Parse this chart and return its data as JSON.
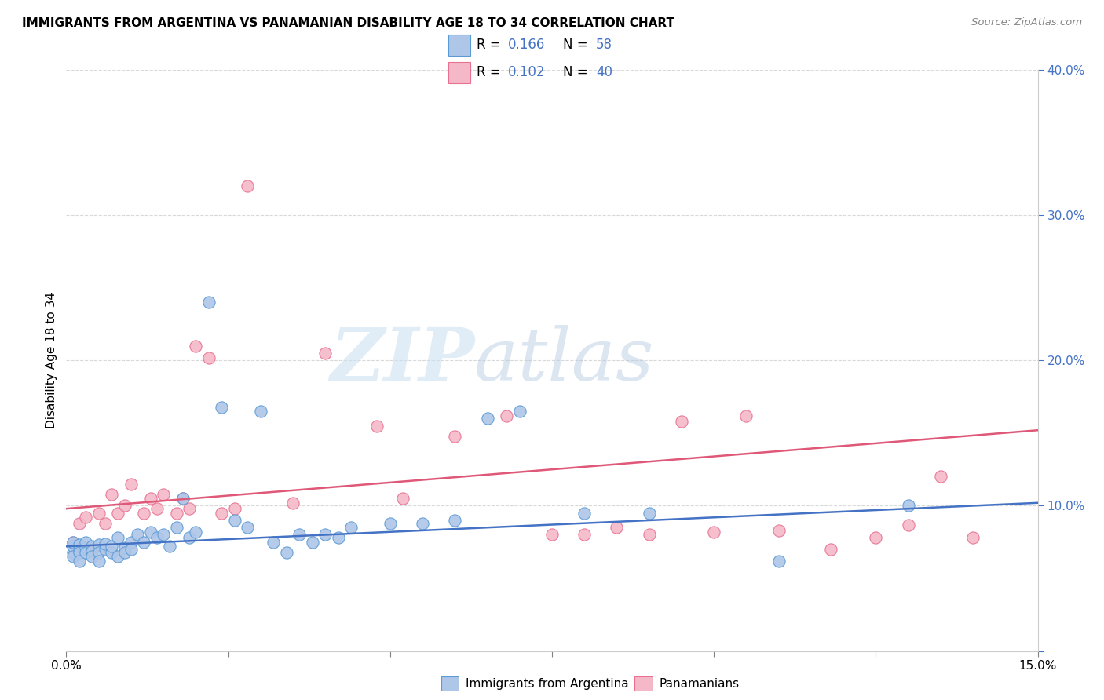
{
  "title": "IMMIGRANTS FROM ARGENTINA VS PANAMANIAN DISABILITY AGE 18 TO 34 CORRELATION CHART",
  "source": "Source: ZipAtlas.com",
  "ylabel": "Disability Age 18 to 34",
  "xlim": [
    0.0,
    0.15
  ],
  "ylim": [
    0.0,
    0.4
  ],
  "xticks": [
    0.0,
    0.025,
    0.05,
    0.075,
    0.1,
    0.125,
    0.15
  ],
  "yticks": [
    0.0,
    0.1,
    0.2,
    0.3,
    0.4
  ],
  "R_argentina": 0.166,
  "N_argentina": 58,
  "R_panama": 0.102,
  "N_panama": 40,
  "argentina_color": "#aec6e8",
  "argentina_edge_color": "#5b9bd5",
  "argentina_line_color": "#4472c4",
  "panama_color": "#f4b8c8",
  "panama_edge_color": "#e87090",
  "panama_line_color": "#e05878",
  "blue_text_color": "#4472c4",
  "background_color": "#ffffff",
  "grid_color": "#d9d9d9",
  "arg_line_start_y": 0.072,
  "arg_line_end_y": 0.102,
  "pan_line_start_y": 0.098,
  "pan_line_end_y": 0.152,
  "argentina_scatter_x": [
    0.001,
    0.001,
    0.001,
    0.001,
    0.002,
    0.002,
    0.002,
    0.002,
    0.003,
    0.003,
    0.003,
    0.004,
    0.004,
    0.004,
    0.005,
    0.005,
    0.005,
    0.006,
    0.006,
    0.007,
    0.007,
    0.008,
    0.008,
    0.009,
    0.009,
    0.01,
    0.01,
    0.011,
    0.012,
    0.013,
    0.014,
    0.015,
    0.016,
    0.017,
    0.018,
    0.019,
    0.02,
    0.022,
    0.024,
    0.026,
    0.028,
    0.03,
    0.032,
    0.034,
    0.036,
    0.038,
    0.04,
    0.042,
    0.044,
    0.05,
    0.055,
    0.06,
    0.065,
    0.07,
    0.08,
    0.09,
    0.11,
    0.13
  ],
  "argentina_scatter_y": [
    0.068,
    0.072,
    0.075,
    0.065,
    0.07,
    0.073,
    0.068,
    0.062,
    0.071,
    0.075,
    0.068,
    0.072,
    0.069,
    0.065,
    0.073,
    0.068,
    0.062,
    0.07,
    0.074,
    0.068,
    0.072,
    0.078,
    0.065,
    0.071,
    0.068,
    0.075,
    0.07,
    0.08,
    0.075,
    0.082,
    0.078,
    0.08,
    0.072,
    0.085,
    0.105,
    0.078,
    0.082,
    0.24,
    0.168,
    0.09,
    0.085,
    0.165,
    0.075,
    0.068,
    0.08,
    0.075,
    0.08,
    0.078,
    0.085,
    0.088,
    0.088,
    0.09,
    0.16,
    0.165,
    0.095,
    0.095,
    0.062,
    0.1
  ],
  "panama_scatter_x": [
    0.001,
    0.002,
    0.003,
    0.005,
    0.006,
    0.007,
    0.008,
    0.009,
    0.01,
    0.012,
    0.013,
    0.014,
    0.015,
    0.017,
    0.018,
    0.019,
    0.02,
    0.022,
    0.024,
    0.026,
    0.028,
    0.035,
    0.04,
    0.048,
    0.052,
    0.06,
    0.068,
    0.075,
    0.08,
    0.085,
    0.09,
    0.095,
    0.1,
    0.105,
    0.11,
    0.118,
    0.125,
    0.13,
    0.135,
    0.14
  ],
  "panama_scatter_y": [
    0.075,
    0.088,
    0.092,
    0.095,
    0.088,
    0.108,
    0.095,
    0.1,
    0.115,
    0.095,
    0.105,
    0.098,
    0.108,
    0.095,
    0.105,
    0.098,
    0.21,
    0.202,
    0.095,
    0.098,
    0.32,
    0.102,
    0.205,
    0.155,
    0.105,
    0.148,
    0.162,
    0.08,
    0.08,
    0.085,
    0.08,
    0.158,
    0.082,
    0.162,
    0.083,
    0.07,
    0.078,
    0.087,
    0.12,
    0.078
  ]
}
